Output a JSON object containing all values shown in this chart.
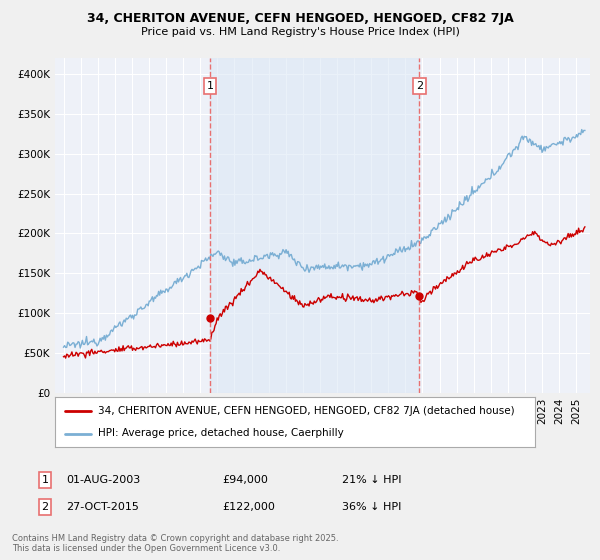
{
  "title1": "34, CHERITON AVENUE, CEFN HENGOED, HENGOED, CF82 7JA",
  "title2": "Price paid vs. HM Land Registry's House Price Index (HPI)",
  "legend_label1": "34, CHERITON AVENUE, CEFN HENGOED, HENGOED, CF82 7JA (detached house)",
  "legend_label2": "HPI: Average price, detached house, Caerphilly",
  "annotation1_date": "01-AUG-2003",
  "annotation1_price": "£94,000",
  "annotation1_hpi": "21% ↓ HPI",
  "annotation2_date": "27-OCT-2015",
  "annotation2_price": "£122,000",
  "annotation2_hpi": "36% ↓ HPI",
  "footer": "Contains HM Land Registry data © Crown copyright and database right 2025.\nThis data is licensed under the Open Government Licence v3.0.",
  "vline1_x": 2003.58,
  "vline2_x": 2015.82,
  "color_red": "#cc0000",
  "color_blue": "#7bafd4",
  "color_vline": "#e87070",
  "color_shade": "#dde8f5",
  "ylim_min": 0,
  "ylim_max": 420000,
  "xlim_min": 1994.5,
  "xlim_max": 2025.8,
  "background_color": "#f0f0f0",
  "plot_bg_color": "#eef1f8"
}
